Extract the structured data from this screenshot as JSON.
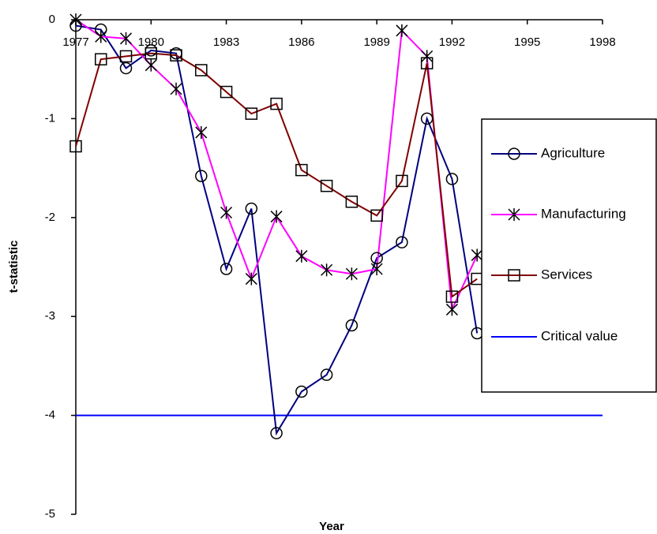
{
  "chart_data": {
    "type": "line",
    "x": [
      1977,
      1978,
      1979,
      1980,
      1981,
      1982,
      1983,
      1984,
      1985,
      1986,
      1987,
      1988,
      1989,
      1990,
      1991,
      1992,
      1993
    ],
    "series": [
      {
        "name": "Agriculture",
        "color": "#000080",
        "marker": "circle",
        "values": [
          -0.06,
          -0.1,
          -0.49,
          -0.31,
          -0.34,
          -1.58,
          -2.52,
          -1.91,
          -4.18,
          -3.76,
          -3.59,
          -3.09,
          -2.41,
          -2.25,
          -1.0,
          -1.61,
          -3.17
        ]
      },
      {
        "name": "Manufacturing",
        "color": "#ff00ff",
        "marker": "asterisk",
        "values": [
          0,
          -0.17,
          -0.19,
          -0.46,
          -0.7,
          -1.14,
          -1.95,
          -2.62,
          -1.99,
          -2.39,
          -2.53,
          -2.57,
          -2.52,
          -0.11,
          -0.37,
          -2.93,
          -2.38
        ]
      },
      {
        "name": "Services",
        "color": "#800000",
        "marker": "square",
        "values": [
          -1.28,
          -0.4,
          -0.37,
          -0.34,
          -0.36,
          -0.51,
          -0.73,
          -0.95,
          -0.85,
          -1.52,
          -1.68,
          -1.84,
          -1.98,
          -1.63,
          -0.44,
          -2.8,
          -2.62
        ]
      }
    ],
    "critical_value": {
      "name": "Critical value",
      "color": "#0000ff",
      "value": -4
    },
    "xlabel": "Year",
    "ylabel": "t-statistic",
    "xlim": [
      1977,
      1998
    ],
    "xticks": [
      1977,
      1980,
      1983,
      1986,
      1989,
      1992,
      1995,
      1998
    ],
    "ylim": [
      -5,
      0
    ],
    "yticks": [
      0,
      -1,
      -2,
      -3,
      -4,
      -5
    ]
  }
}
